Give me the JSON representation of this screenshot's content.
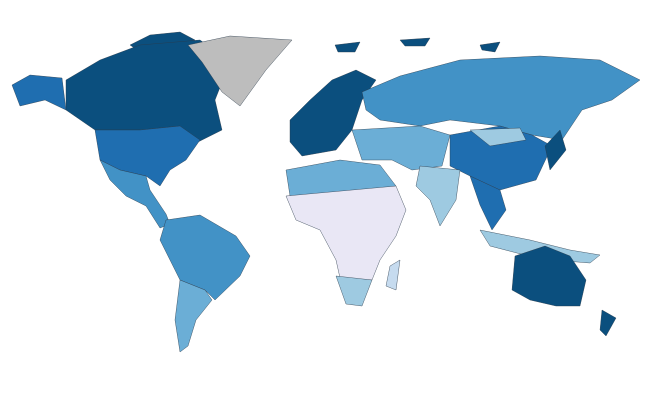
{
  "map": {
    "type": "choropleth",
    "colors": [
      "#0b4f7e",
      "#1f6eb0",
      "#4292c6",
      "#6baed6",
      "#9ecae1",
      "#c6dbef",
      "#e9e7f5",
      "#bdbdbd"
    ]
  }
}
